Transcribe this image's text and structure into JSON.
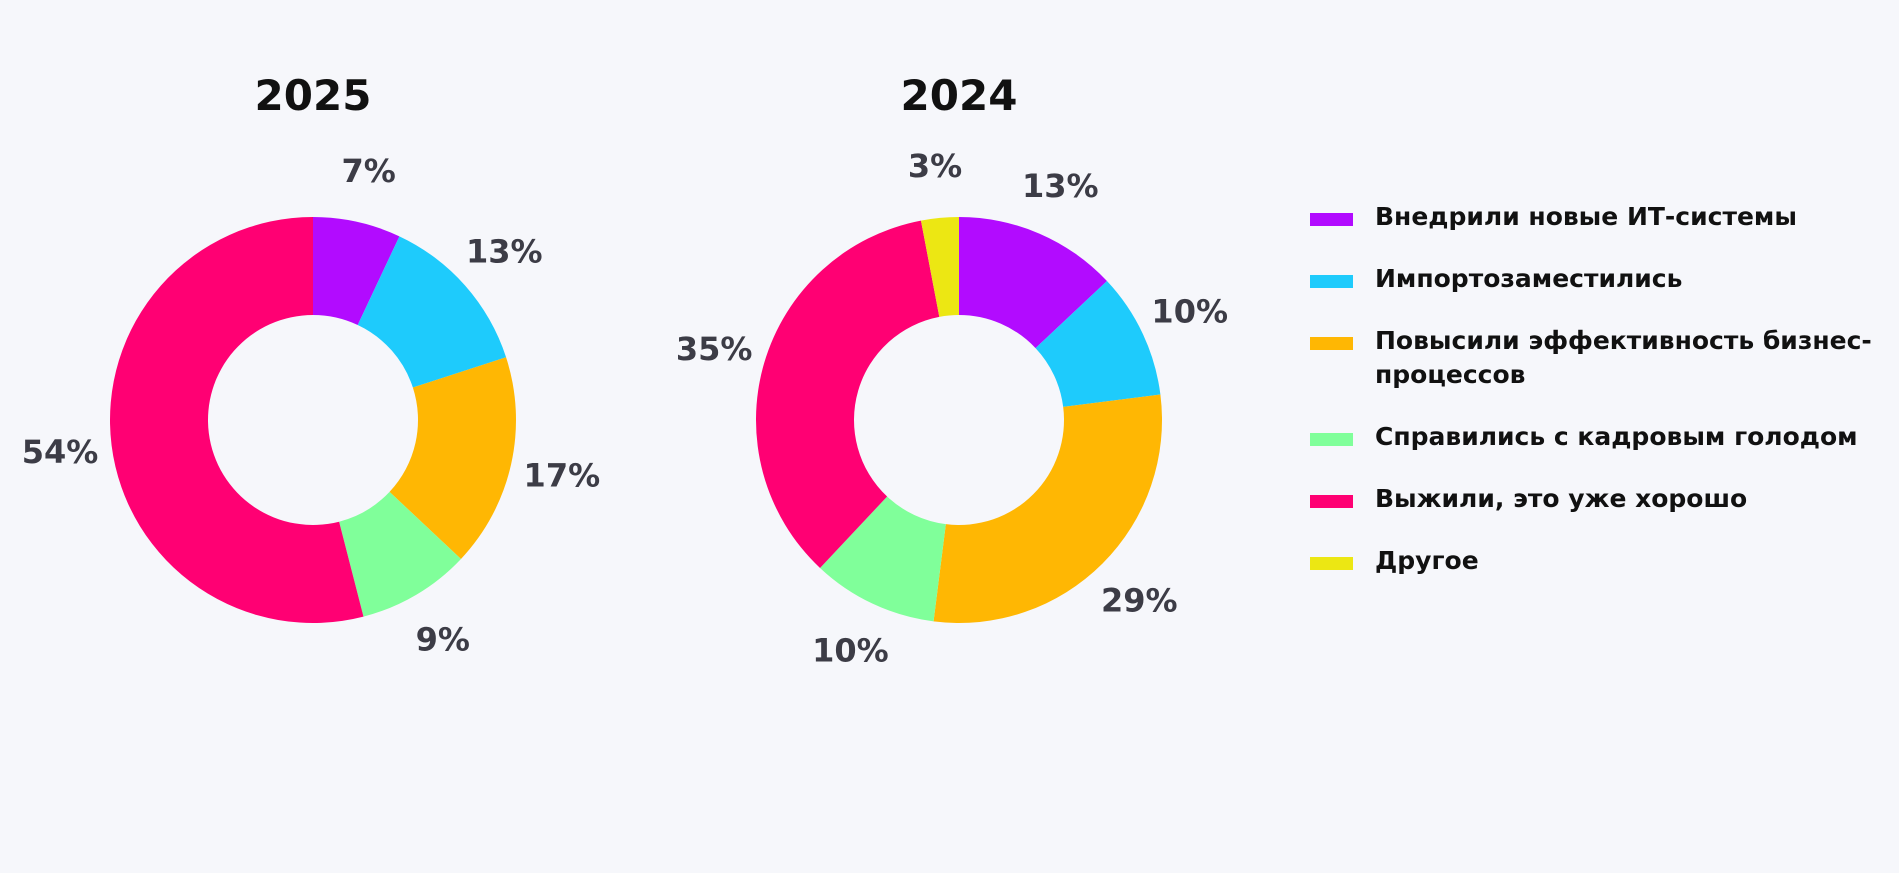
{
  "legend": {
    "items": [
      {
        "label": "Внедрили новые ИТ-системы",
        "color": "#b20bff"
      },
      {
        "label": "Импортозаместились",
        "color": "#1ecbfc"
      },
      {
        "label": "Повысили эффективность бизнес-процессов",
        "color": "#ffb703"
      },
      {
        "label": "Справились с кадровым голодом",
        "color": "#80ff9a"
      },
      {
        "label": "Выжили, это уже хорошо",
        "color": "#ff0073"
      },
      {
        "label": "Другое",
        "color": "#ece713"
      }
    ]
  },
  "chart_data": [
    {
      "type": "pie",
      "variant": "donut",
      "title": "2025",
      "categories": [
        "Внедрили новые ИТ-системы",
        "Импортозаместились",
        "Повысили эффективность бизнес-процессов",
        "Справились с кадровым голодом",
        "Выжили, это уже хорошо"
      ],
      "values": [
        7,
        13,
        17,
        9,
        54
      ],
      "labels": [
        "7%",
        "13%",
        "17%",
        "9%",
        "54%"
      ],
      "colors": [
        "#b20bff",
        "#1ecbfc",
        "#ffb703",
        "#80ff9a",
        "#ff0073"
      ]
    },
    {
      "type": "pie",
      "variant": "donut",
      "title": "2024",
      "categories": [
        "Внедрили новые ИТ-системы",
        "Импортозаместились",
        "Повысили эффективность бизнес-процессов",
        "Справились с кадровым голодом",
        "Выжили, это уже хорошо",
        "Другое"
      ],
      "values": [
        13,
        10,
        29,
        10,
        35,
        3
      ],
      "labels": [
        "13%",
        "10%",
        "29%",
        "10%",
        "35%",
        "3%"
      ],
      "colors": [
        "#b20bff",
        "#1ecbfc",
        "#ffb703",
        "#80ff9a",
        "#ff0073",
        "#ece713"
      ]
    }
  ]
}
